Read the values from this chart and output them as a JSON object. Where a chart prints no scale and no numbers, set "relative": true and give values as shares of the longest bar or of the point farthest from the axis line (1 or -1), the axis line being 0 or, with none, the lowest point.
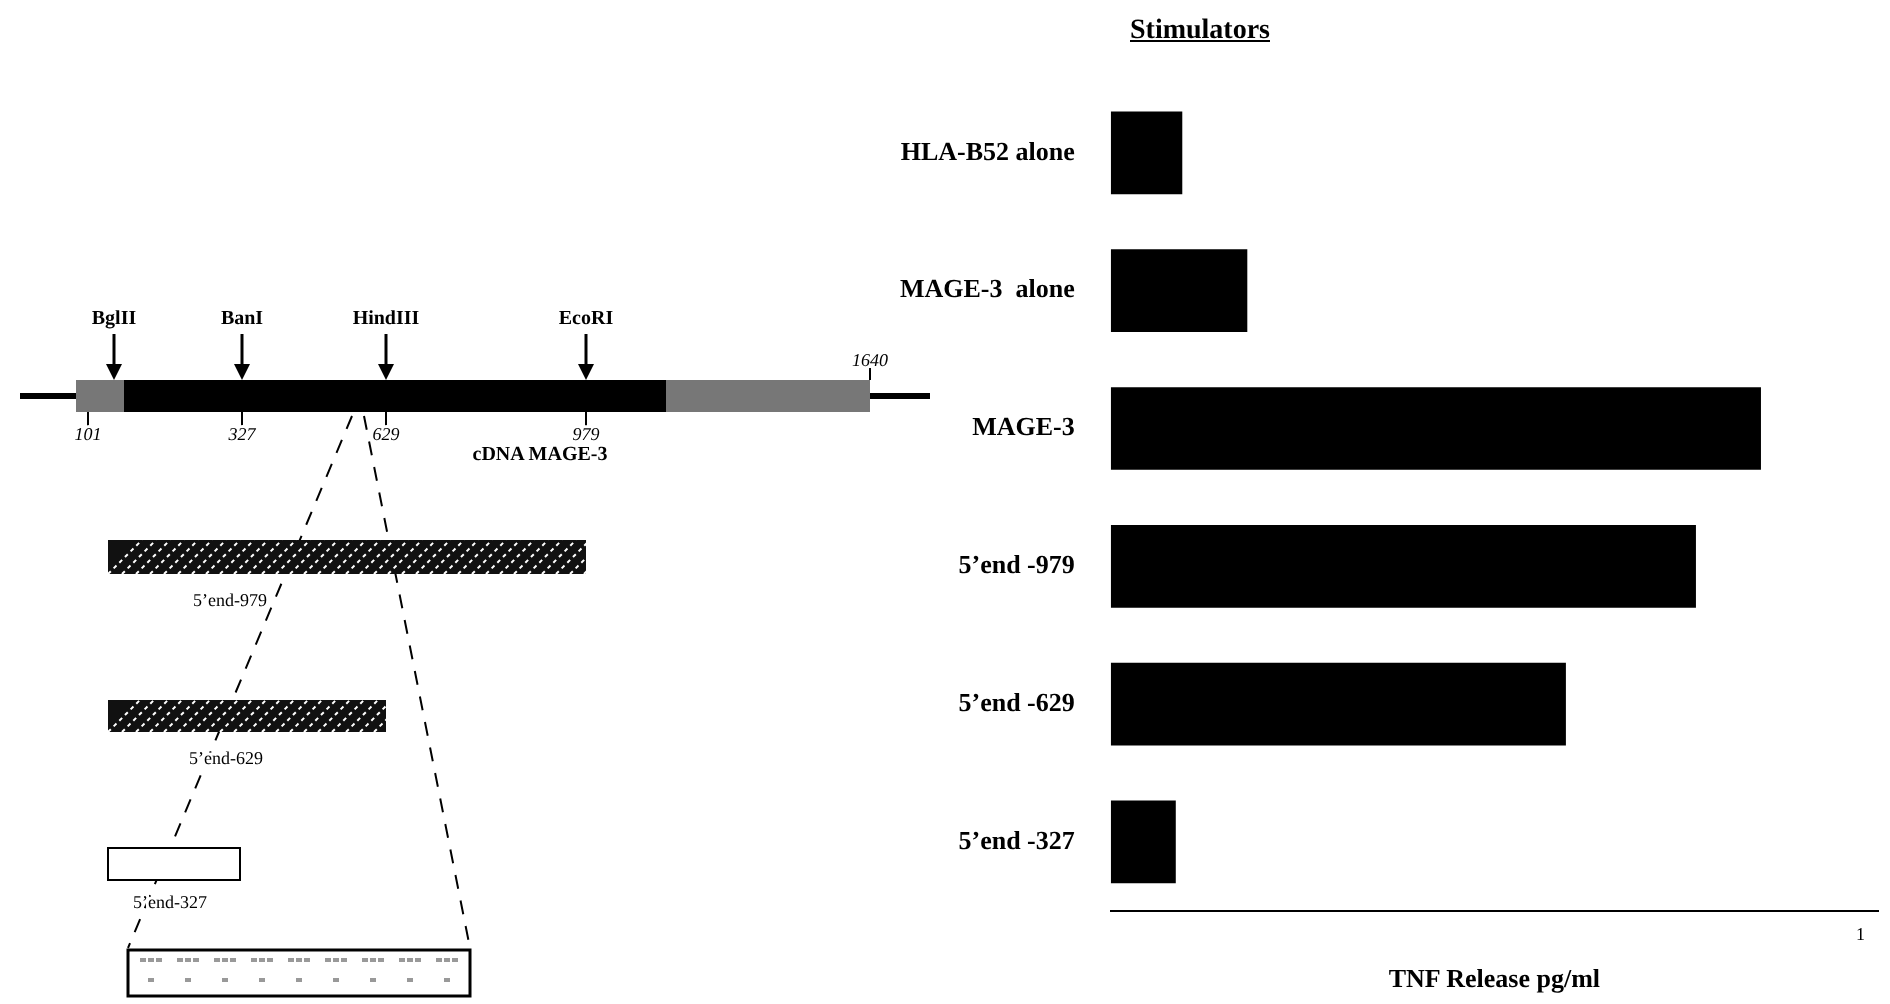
{
  "chart_data": {
    "type": "bar",
    "orientation": "horizontal",
    "relative": true,
    "title": "Stimulators",
    "xlabel": "TNF Release pg/ml",
    "categories": [
      "HLA-B52 alone",
      "MAGE-3  alone",
      "MAGE-3",
      "5’end -979",
      "5’end -629",
      "5’end -327"
    ],
    "values": [
      0.11,
      0.21,
      1,
      0.9,
      0.7,
      0.1
    ],
    "color": "#000000",
    "grid": false,
    "legend": false,
    "annotations": [
      "BglII",
      "BanI",
      "HindIII",
      "EcoRI",
      "101",
      "327",
      "629",
      "979",
      "1640",
      "cDNA MAGE-3",
      "5’end-979",
      "5’end-629",
      "5’end-327",
      "1"
    ]
  }
}
